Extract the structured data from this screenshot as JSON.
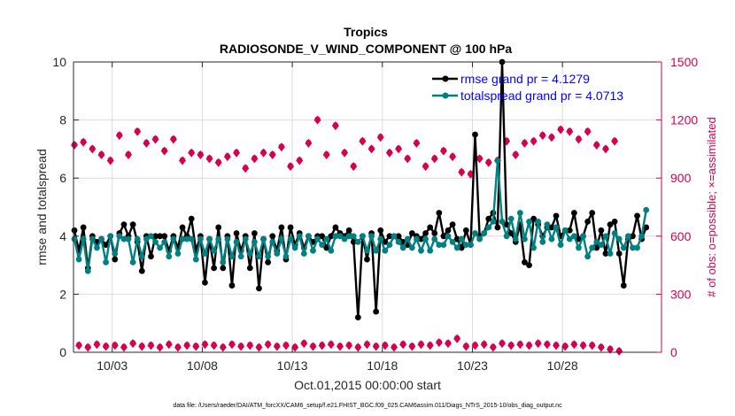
{
  "chart_data": {
    "type": "line",
    "title": "Tropics",
    "subtitle": "RADIOSONDE_V_WIND_COMPONENT @ 100 hPa",
    "xlabel": "Oct.01,2015 00:00:00 start",
    "ylabel": "rmse and totalspread",
    "y2label": "# of obs: o=possible; ×=assimilated",
    "footnote": "data file: /Users/raeder/DAI/ATM_forcXX/CAM6_setup/f.e21.FHIST_BGC.f09_025.CAM6assim.011/Diags_NTrS_2015-10/obs_diag_output.nc",
    "x_unit": "days since Oct.01,2015 00:00",
    "x_start": -0.1,
    "x_step": 0.25,
    "xlim": [
      -0.15,
      32.5
    ],
    "xticks": [
      {
        "value": 2,
        "label": "10/03"
      },
      {
        "value": 7,
        "label": "10/08"
      },
      {
        "value": 12,
        "label": "10/13"
      },
      {
        "value": 17,
        "label": "10/18"
      },
      {
        "value": 22,
        "label": "10/23"
      },
      {
        "value": 27,
        "label": "10/28"
      }
    ],
    "ylim": [
      0,
      10
    ],
    "yticks": [
      0,
      2,
      4,
      6,
      8,
      10
    ],
    "y2lim": [
      0,
      1500
    ],
    "y2ticks": [
      0,
      300,
      600,
      900,
      1200,
      1500
    ],
    "grid": true,
    "legend_position": "top-right",
    "colors": {
      "rmse": "#000000",
      "totalspread": "#008080",
      "obs": "#D6004F",
      "legend_text": "#0000FF"
    },
    "series": [
      {
        "name": "rmse grand pr = 4.1279",
        "key": "rmse",
        "values": [
          4.2,
          3.5,
          4.3,
          2.9,
          4.0,
          3.8,
          3.9,
          3.7,
          4.0,
          3.2,
          4.1,
          4.4,
          4.0,
          4.4,
          3.8,
          2.8,
          4.0,
          3.3,
          4.0,
          4.0,
          4.0,
          3.5,
          4.0,
          3.6,
          4.3,
          4.0,
          4.6,
          3.5,
          4.0,
          2.4,
          3.9,
          2.9,
          4.3,
          2.9,
          4.0,
          2.3,
          4.1,
          3.5,
          4.0,
          2.9,
          4.1,
          2.2,
          3.9,
          3.1,
          4.0,
          3.5,
          4.3,
          3.2,
          4.3,
          3.7,
          4.1,
          3.6,
          4.0,
          3.8,
          4.0,
          4.0,
          3.6,
          4.0,
          4.3,
          4.1,
          4.0,
          4.2,
          3.8,
          1.2,
          4.0,
          3.2,
          4.1,
          1.4,
          4.2,
          3.8,
          4.0,
          4.0,
          4.0,
          3.8,
          3.7,
          4.1,
          4.0,
          3.9,
          4.1,
          4.3,
          4.1,
          4.8,
          4.0,
          4.2,
          4.4,
          3.9,
          3.6,
          4.2,
          3.7,
          7.5,
          4.0,
          4.1,
          4.6,
          4.8,
          4.3,
          10.0,
          4.4,
          4.1,
          3.8,
          4.4,
          3.1,
          3.0,
          4.6,
          4.4,
          4.0,
          4.3,
          4.3,
          4.7,
          4.0,
          4.2,
          4.2,
          4.8,
          3.9,
          4.0,
          4.5,
          4.8,
          3.6,
          4.2,
          3.4,
          4.4,
          4.5,
          3.4,
          2.3,
          3.9,
          4.0,
          4.7,
          3.9,
          4.3
        ],
        "note": "approximate"
      },
      {
        "name": "totalspread grand pr = 4.0713",
        "key": "totalspread",
        "values": [
          3.9,
          3.2,
          3.9,
          2.8,
          3.9,
          3.6,
          3.9,
          3.1,
          4.0,
          3.4,
          4.0,
          3.9,
          3.9,
          3.1,
          3.9,
          3.3,
          3.9,
          4.0,
          3.8,
          3.6,
          3.8,
          3.3,
          3.9,
          3.4,
          3.9,
          3.9,
          3.9,
          3.2,
          3.9,
          3.4,
          3.9,
          3.5,
          3.9,
          3.1,
          3.9,
          3.3,
          3.8,
          3.3,
          3.9,
          3.4,
          3.8,
          3.3,
          3.9,
          3.3,
          3.8,
          3.4,
          3.9,
          3.3,
          3.9,
          3.6,
          4.0,
          3.4,
          4.0,
          3.5,
          3.9,
          3.7,
          3.9,
          3.5,
          4.0,
          4.0,
          3.9,
          4.0,
          4.0,
          3.8,
          4.0,
          3.5,
          4.0,
          3.5,
          3.9,
          3.5,
          3.7,
          4.0,
          3.8,
          3.6,
          3.9,
          3.6,
          3.9,
          3.5,
          3.9,
          3.5,
          3.9,
          3.7,
          3.7,
          4.0,
          3.8,
          3.6,
          3.9,
          3.7,
          3.7,
          4.1,
          3.9,
          4.1,
          4.3,
          4.5,
          6.6,
          4.5,
          4.0,
          4.6,
          3.9,
          4.8,
          3.9,
          4.5,
          3.6,
          4.5,
          3.8,
          4.4,
          3.9,
          4.3,
          3.7,
          4.2,
          3.9,
          4.0,
          3.6,
          4.0,
          3.3,
          3.6,
          3.8,
          3.7,
          4.0,
          3.4,
          4.1,
          3.9,
          3.6,
          4.0,
          3.6,
          3.6,
          4.0,
          4.9
        ],
        "note": "approximate"
      }
    ],
    "obs_series": {
      "name": "# of obs (possible / assimilated)",
      "key": "obs",
      "high_times_note": "00Z/12Z counts (every other point)",
      "values": [
        1070,
        35,
        1085,
        25,
        1050,
        40,
        1020,
        30,
        990,
        35,
        1120,
        25,
        1020,
        45,
        1140,
        30,
        1080,
        35,
        1100,
        25,
        1040,
        40,
        1100,
        25,
        990,
        35,
        1030,
        30,
        1020,
        40,
        1000,
        35,
        980,
        25,
        1010,
        40,
        1030,
        30,
        950,
        35,
        1000,
        25,
        1030,
        40,
        1020,
        30,
        1060,
        35,
        960,
        25,
        990,
        45,
        1080,
        30,
        1200,
        35,
        1020,
        40,
        1170,
        30,
        1030,
        35,
        960,
        25,
        1090,
        40,
        1050,
        30,
        1110,
        35,
        1030,
        25,
        1050,
        40,
        1000,
        30,
        1080,
        40,
        960,
        35,
        1000,
        50,
        1040,
        45,
        1010,
        70,
        930,
        30,
        920,
        35,
        1000,
        40,
        980,
        25,
        990,
        45,
        1090,
        35,
        1020,
        40,
        1080,
        35,
        1090,
        45,
        1120,
        40,
        1110,
        35,
        1150,
        30,
        1140,
        40,
        1100,
        35,
        1140,
        35,
        1070,
        25,
        1050,
        15,
        1090,
        5
      ]
    }
  }
}
